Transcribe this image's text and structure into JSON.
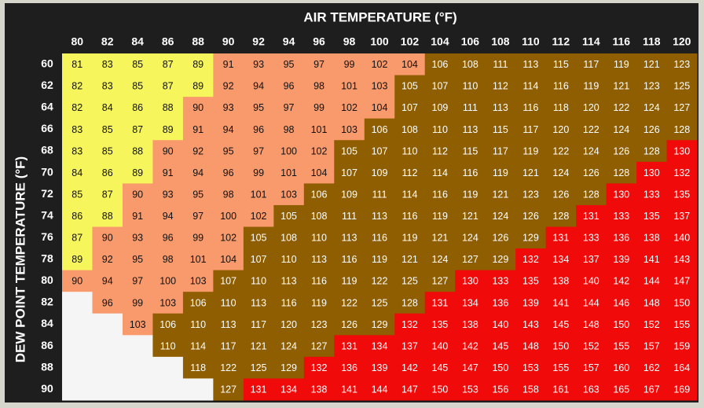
{
  "title": "AIR TEMPERATURE (°F)",
  "row_title": "DEW POINT TEMPERATURE (°F)",
  "columns": [
    80,
    82,
    84,
    86,
    88,
    90,
    92,
    94,
    96,
    98,
    100,
    102,
    104,
    106,
    108,
    110,
    112,
    114,
    116,
    118,
    120
  ],
  "rows": [
    {
      "label": 60,
      "values": [
        81,
        83,
        85,
        87,
        89,
        91,
        93,
        95,
        97,
        99,
        102,
        104,
        106,
        108,
        111,
        113,
        115,
        117,
        119,
        121,
        123
      ]
    },
    {
      "label": 62,
      "values": [
        82,
        83,
        85,
        87,
        89,
        92,
        94,
        96,
        98,
        101,
        103,
        105,
        107,
        110,
        112,
        114,
        116,
        119,
        121,
        123,
        125
      ]
    },
    {
      "label": 64,
      "values": [
        82,
        84,
        86,
        88,
        90,
        93,
        95,
        97,
        99,
        102,
        104,
        107,
        109,
        111,
        113,
        116,
        118,
        120,
        122,
        124,
        127
      ]
    },
    {
      "label": 66,
      "values": [
        83,
        85,
        87,
        89,
        91,
        94,
        96,
        98,
        101,
        103,
        106,
        108,
        110,
        113,
        115,
        117,
        120,
        122,
        124,
        126,
        128
      ]
    },
    {
      "label": 68,
      "values": [
        83,
        85,
        88,
        90,
        92,
        95,
        97,
        100,
        102,
        105,
        107,
        110,
        112,
        115,
        117,
        119,
        122,
        124,
        126,
        128,
        130
      ]
    },
    {
      "label": 70,
      "values": [
        84,
        86,
        89,
        91,
        94,
        96,
        99,
        101,
        104,
        107,
        109,
        112,
        114,
        116,
        119,
        121,
        124,
        126,
        128,
        130,
        132
      ]
    },
    {
      "label": 72,
      "values": [
        85,
        87,
        90,
        93,
        95,
        98,
        101,
        103,
        106,
        109,
        111,
        114,
        116,
        119,
        121,
        123,
        126,
        128,
        130,
        133,
        135
      ]
    },
    {
      "label": 74,
      "values": [
        86,
        88,
        91,
        94,
        97,
        100,
        102,
        105,
        108,
        111,
        113,
        116,
        119,
        121,
        124,
        126,
        128,
        131,
        133,
        135,
        137
      ]
    },
    {
      "label": 76,
      "values": [
        87,
        90,
        93,
        96,
        99,
        102,
        105,
        108,
        110,
        113,
        116,
        119,
        121,
        124,
        126,
        129,
        131,
        133,
        136,
        138,
        140
      ]
    },
    {
      "label": 78,
      "values": [
        89,
        92,
        95,
        98,
        101,
        104,
        107,
        110,
        113,
        116,
        119,
        121,
        124,
        127,
        129,
        132,
        134,
        137,
        139,
        141,
        143
      ]
    },
    {
      "label": 80,
      "values": [
        90,
        94,
        97,
        100,
        103,
        107,
        110,
        113,
        116,
        119,
        122,
        125,
        127,
        130,
        133,
        135,
        138,
        140,
        142,
        144,
        147
      ]
    },
    {
      "label": 82,
      "values": [
        null,
        96,
        99,
        103,
        106,
        110,
        113,
        116,
        119,
        122,
        125,
        128,
        131,
        134,
        136,
        139,
        141,
        144,
        146,
        148,
        150
      ]
    },
    {
      "label": 84,
      "values": [
        null,
        null,
        103,
        106,
        110,
        113,
        117,
        120,
        123,
        126,
        129,
        132,
        135,
        138,
        140,
        143,
        145,
        148,
        150,
        152,
        155
      ]
    },
    {
      "label": 86,
      "values": [
        null,
        null,
        null,
        110,
        114,
        117,
        121,
        124,
        127,
        131,
        134,
        137,
        140,
        142,
        145,
        148,
        150,
        152,
        155,
        157,
        159
      ]
    },
    {
      "label": 88,
      "values": [
        null,
        null,
        null,
        null,
        118,
        122,
        125,
        129,
        132,
        136,
        139,
        142,
        145,
        147,
        150,
        153,
        155,
        157,
        160,
        162,
        164
      ]
    },
    {
      "label": 90,
      "values": [
        null,
        null,
        null,
        null,
        null,
        127,
        131,
        134,
        138,
        141,
        144,
        147,
        150,
        153,
        156,
        158,
        161,
        163,
        165,
        167,
        169
      ]
    }
  ],
  "color_scale": [
    {
      "below": 90,
      "color": "#f6f55c",
      "text_color": "#111111"
    },
    {
      "below": 105,
      "color": "#f99a6c",
      "text_color": "#111111"
    },
    {
      "below": 130,
      "color": "#8e5e00",
      "text_color": "#ffffff"
    },
    {
      "below": null,
      "color": "#f00a0a",
      "text_color": "#ffffff"
    }
  ],
  "empty_color": "#f5f5f5"
}
